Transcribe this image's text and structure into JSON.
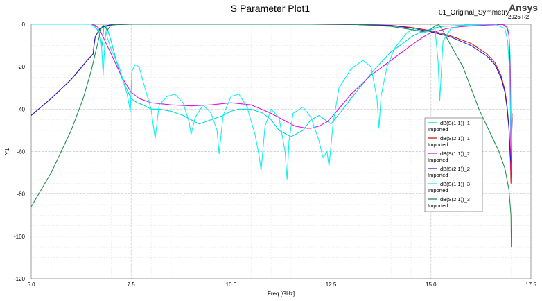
{
  "chart_data": {
    "type": "line",
    "title": "S Parameter Plot1",
    "xlabel": "Freq [GHz]",
    "ylabel": "Y1",
    "xlim": [
      5.0,
      17.5
    ],
    "ylim": [
      -120,
      0
    ],
    "x_ticks": [
      "5.0",
      "7.5",
      "10.0",
      "12.5",
      "15.0",
      "17.5"
    ],
    "y_ticks": [
      "0",
      "-20",
      "-40",
      "-60",
      "-80",
      "-100",
      "-120"
    ],
    "grid": true,
    "legend_position": "right",
    "series": [
      {
        "name": "dB(S(1,1))_1",
        "sublabel": "Imported",
        "color": "#00d8d8",
        "x": [
          5.0,
          6.0,
          6.5,
          6.6,
          6.7,
          6.78,
          6.8,
          6.82,
          6.85,
          6.88,
          6.92,
          7.0,
          7.1,
          7.2,
          7.3,
          7.4,
          7.5,
          7.65,
          7.8,
          8.0,
          8.2,
          8.5,
          8.8,
          9.0,
          9.2,
          9.5,
          9.8,
          10.0,
          10.2,
          10.5,
          10.8,
          11.0,
          11.2,
          11.5,
          11.8,
          12.0,
          12.2,
          12.5,
          12.8,
          13.0,
          13.3,
          13.6,
          14.0,
          14.3,
          14.5,
          14.7,
          14.9,
          15.0,
          15.15,
          15.3,
          15.6,
          16.0,
          16.5,
          16.8,
          16.9,
          16.95,
          16.98,
          17.0,
          17.02
        ],
        "y": [
          0,
          0,
          0,
          -1,
          -4,
          -10,
          -5,
          -1,
          -0.5,
          -1,
          -3,
          -8,
          -15,
          -22,
          -27,
          -31,
          -35,
          -37,
          -38,
          -40,
          -40,
          -41,
          -43,
          -45,
          -47,
          -45,
          -43,
          -41,
          -40,
          -40,
          -42,
          -45,
          -50,
          -53,
          -50,
          -45,
          -43,
          -47,
          -40,
          -35,
          -28,
          -21,
          -13,
          -9,
          -6,
          -4,
          -3,
          -2,
          -1.5,
          -1,
          -0.7,
          -0.3,
          0,
          0,
          -1,
          -4,
          -15,
          -43,
          -65
        ]
      },
      {
        "name": "dB(S(2,1))_1",
        "sublabel": "Imported",
        "color": "#d01818",
        "x": [
          5.0,
          5.5,
          6.0,
          6.4,
          6.55,
          6.57,
          6.6,
          6.7,
          6.8,
          6.9,
          7.0,
          7.2,
          7.5,
          8.0,
          9.0,
          10.0,
          11.0,
          12.0,
          13.0,
          14.0,
          14.5,
          15.0,
          15.5,
          16.0,
          16.4,
          16.6,
          16.75,
          16.85,
          16.9,
          16.95,
          16.98,
          17.0,
          17.03
        ],
        "y": [
          -43,
          -35,
          -26,
          -17,
          -14,
          -10,
          -6,
          -2.5,
          -1.2,
          -0.6,
          -0.3,
          -0.1,
          0,
          0,
          0,
          0,
          0,
          0,
          -0.1,
          -0.5,
          -1.5,
          -3,
          -5.5,
          -9,
          -14,
          -18,
          -24,
          -31,
          -38,
          -48,
          -60,
          -75,
          -42
        ]
      },
      {
        "name": "dB(S(1,1))_2",
        "sublabel": "Imported",
        "color": "#e010e0",
        "x": [
          5.0,
          6.3,
          6.5,
          6.6,
          6.7,
          6.8,
          6.9,
          7.0,
          7.1,
          7.2,
          7.3,
          7.4,
          7.5,
          7.7,
          8.0,
          8.5,
          9.0,
          9.5,
          10.0,
          10.5,
          11.0,
          11.3,
          11.6,
          11.9,
          12.0,
          12.2,
          12.4,
          12.6,
          13.0,
          13.5,
          14.0,
          14.5,
          14.8,
          15.0,
          15.2,
          15.4,
          15.7,
          16.0,
          16.5,
          16.8,
          16.9,
          16.95,
          16.98,
          17.0,
          17.02
        ],
        "y": [
          0,
          0,
          0,
          -0.5,
          -2,
          -6,
          -10,
          -14,
          -18,
          -22,
          -26,
          -29,
          -32,
          -35,
          -37,
          -38,
          -38.5,
          -38,
          -37,
          -38,
          -42,
          -45,
          -48,
          -49,
          -49,
          -48,
          -46,
          -42,
          -33,
          -24,
          -17,
          -10,
          -6,
          -4,
          -3,
          -2,
          -1.2,
          -0.8,
          -0.3,
          -0.1,
          -1.5,
          -5,
          -20,
          -70,
          -45
        ]
      },
      {
        "name": "dB(S(2,1))_2",
        "sublabel": "Imported",
        "color": "#2020d0",
        "x": [
          5.0,
          5.5,
          6.0,
          6.4,
          6.55,
          6.57,
          6.6,
          6.7,
          6.8,
          6.9,
          7.0,
          7.2,
          7.5,
          8.0,
          9.0,
          10.0,
          11.0,
          12.0,
          13.0,
          14.0,
          14.5,
          15.0,
          15.5,
          16.0,
          16.4,
          16.6,
          16.75,
          16.85,
          16.9,
          16.95,
          16.98,
          17.0,
          17.03
        ],
        "y": [
          -43,
          -35,
          -26,
          -17,
          -14,
          -10,
          -6,
          -2.6,
          -1.3,
          -0.6,
          -0.3,
          -0.1,
          0,
          0,
          0,
          0,
          0,
          0,
          -0.1,
          -0.6,
          -1.8,
          -3.5,
          -6,
          -10,
          -15,
          -19,
          -25,
          -32,
          -39,
          -49,
          -62,
          -65,
          -44
        ]
      },
      {
        "name": "dB(S(1,1))_3",
        "sublabel": "Imported",
        "color": "#10f0f0",
        "x": [
          5.0,
          6.5,
          6.7,
          6.76,
          6.8,
          6.84,
          6.87,
          6.9,
          7.0,
          7.2,
          7.4,
          7.48,
          7.52,
          7.6,
          7.7,
          7.8,
          8.0,
          8.1,
          8.2,
          8.4,
          8.6,
          8.8,
          8.95,
          9.0,
          9.1,
          9.3,
          9.5,
          9.65,
          9.7,
          9.8,
          10.0,
          10.2,
          10.4,
          10.6,
          10.7,
          10.75,
          10.85,
          11.0,
          11.2,
          11.35,
          11.4,
          11.45,
          11.55,
          11.8,
          12.0,
          12.2,
          12.3,
          12.4,
          12.45,
          12.55,
          12.7,
          13.0,
          13.3,
          13.5,
          13.65,
          13.7,
          13.75,
          13.9,
          14.1,
          14.4,
          14.6,
          14.8,
          15.0,
          15.1,
          15.18,
          15.22,
          15.3,
          15.5,
          15.8,
          16.2,
          16.6,
          16.85,
          16.92,
          16.96,
          17.0,
          17.02
        ],
        "y": [
          0,
          0,
          -3,
          -10,
          -24,
          -10,
          -3,
          -6,
          -12,
          -20,
          -33,
          -41,
          -22,
          -19,
          -20,
          -27,
          -40,
          -54,
          -38,
          -34,
          -33,
          -37,
          -46,
          -52,
          -44,
          -38,
          -42,
          -50,
          -61,
          -43,
          -34,
          -33,
          -39,
          -52,
          -62,
          -69,
          -48,
          -40,
          -44,
          -60,
          -73,
          -55,
          -42,
          -39,
          -44,
          -55,
          -63,
          -60,
          -67,
          -47,
          -30,
          -21,
          -17,
          -20,
          -35,
          -49,
          -34,
          -20,
          -11,
          -4,
          -2,
          -4,
          -3,
          -2,
          -18,
          -36,
          -8,
          -2,
          -0.5,
          0,
          0,
          -2,
          -8,
          -20,
          -50,
          -65
        ]
      },
      {
        "name": "dB(S(2,1))_3",
        "sublabel": "Imported",
        "color": "#209050",
        "x": [
          5.0,
          5.5,
          6.0,
          6.3,
          6.5,
          6.6,
          6.7,
          6.75,
          6.8,
          6.85,
          6.9,
          6.95,
          7.0,
          7.1,
          7.3,
          7.5,
          8.0,
          9.0,
          10.0,
          11.0,
          12.0,
          13.0,
          14.0,
          14.5,
          14.8,
          15.0,
          15.1,
          15.2,
          15.3,
          15.5,
          15.8,
          16.0,
          16.2,
          16.5,
          16.7,
          16.85,
          16.95,
          17.0,
          17.01
        ],
        "y": [
          -86,
          -70,
          -50,
          -35,
          -22,
          -14,
          -6,
          -2,
          -0.5,
          -1,
          -3,
          -1.5,
          -0.5,
          -0.2,
          0,
          0,
          0,
          0,
          0,
          0,
          0,
          0,
          -1,
          -2.5,
          -3.5,
          -2.5,
          -0.8,
          -0.2,
          -3,
          -10,
          -20,
          -30,
          -40,
          -52,
          -60,
          -68,
          -78,
          -90,
          -105
        ]
      }
    ]
  },
  "header": {
    "project_name": "01_Original_Symmetry",
    "brand": "Ansys",
    "version": "2025 R2"
  }
}
